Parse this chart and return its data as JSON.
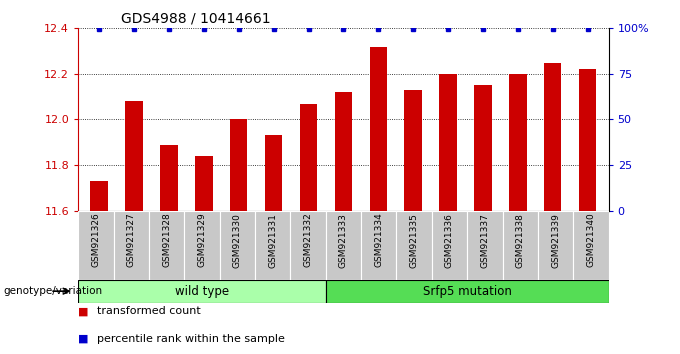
{
  "title": "GDS4988 / 10414661",
  "samples": [
    "GSM921326",
    "GSM921327",
    "GSM921328",
    "GSM921329",
    "GSM921330",
    "GSM921331",
    "GSM921332",
    "GSM921333",
    "GSM921334",
    "GSM921335",
    "GSM921336",
    "GSM921337",
    "GSM921338",
    "GSM921339",
    "GSM921340"
  ],
  "bar_values": [
    11.73,
    12.08,
    11.89,
    11.84,
    12.0,
    11.93,
    12.07,
    12.12,
    12.32,
    12.13,
    12.2,
    12.15,
    12.2,
    12.25,
    12.22
  ],
  "bar_color": "#cc0000",
  "percentile_color": "#0000cc",
  "ylim_left": [
    11.6,
    12.4
  ],
  "ylim_right": [
    0,
    100
  ],
  "yticks_left": [
    11.6,
    11.8,
    12.0,
    12.2,
    12.4
  ],
  "yticks_right": [
    0,
    25,
    50,
    75,
    100
  ],
  "ytick_labels_right": [
    "0",
    "25",
    "50",
    "75",
    "100%"
  ],
  "grid_values": [
    11.8,
    12.0,
    12.2,
    12.4
  ],
  "wild_type_count": 7,
  "mutation_count": 8,
  "wild_type_label": "wild type",
  "mutation_label": "Srfp5 mutation",
  "genotype_label": "genotype/variation",
  "legend_items": [
    "transformed count",
    "percentile rank within the sample"
  ],
  "group_bg_light": "#aaffaa",
  "group_bg_dark": "#55dd55",
  "tick_bg": "#c8c8c8",
  "bar_width": 0.5,
  "percentile_pct": 99.5
}
